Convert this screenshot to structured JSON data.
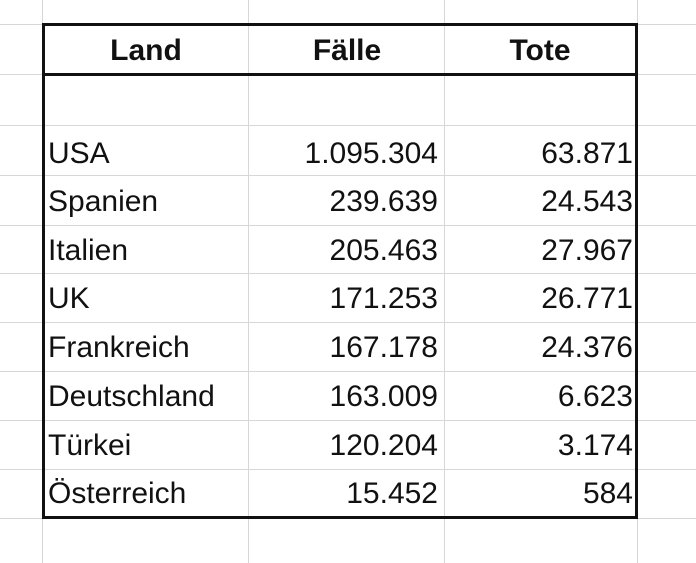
{
  "table": {
    "headers": [
      "Land",
      "Fälle",
      "Tote"
    ],
    "rows": [
      {
        "land": "USA",
        "faelle": "1.095.304",
        "tote": "63.871"
      },
      {
        "land": "Spanien",
        "faelle": "239.639",
        "tote": "24.543"
      },
      {
        "land": "Italien",
        "faelle": "205.463",
        "tote": "27.967"
      },
      {
        "land": "UK",
        "faelle": "171.253",
        "tote": "26.771"
      },
      {
        "land": "Frankreich",
        "faelle": "167.178",
        "tote": "24.376"
      },
      {
        "land": "Deutschland",
        "faelle": "163.009",
        "tote": "6.623"
      },
      {
        "land": "Türkei",
        "faelle": "120.204",
        "tote": "3.174"
      },
      {
        "land": "Österreich",
        "faelle": "15.452",
        "tote": "584"
      }
    ]
  },
  "colors": {
    "border": "#111111",
    "gridline": "#d7d7d7",
    "text": "#111111",
    "background": "#ffffff"
  }
}
